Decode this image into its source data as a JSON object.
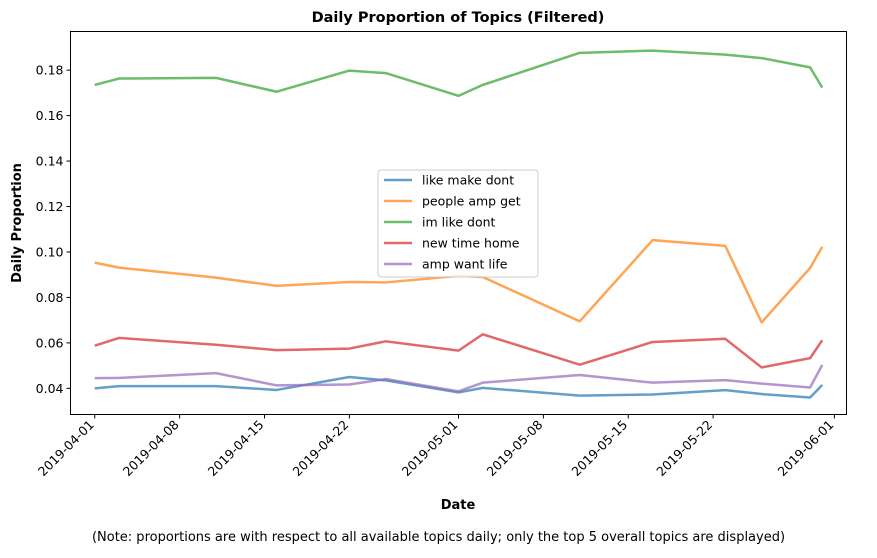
{
  "chart_data": {
    "type": "line",
    "title": "Daily Proportion of Topics (Filtered)",
    "xlabel": "Date",
    "ylabel": "Daily Proportion",
    "x_ticks": [
      "2019-04-01",
      "2019-04-08",
      "2019-04-15",
      "2019-04-22",
      "2019-05-01",
      "2019-05-08",
      "2019-05-15",
      "2019-05-22",
      "2019-06-01"
    ],
    "y_ticks": [
      "0.04",
      "0.06",
      "0.08",
      "0.10",
      "0.12",
      "0.14",
      "0.16",
      "0.18"
    ],
    "xlim": [
      "2019-03-30",
      "2019-06-02"
    ],
    "ylim": [
      0.0285,
      0.197
    ],
    "grid": false,
    "legend_position": "center",
    "x": [
      "2019-04-01",
      "2019-04-03",
      "2019-04-11",
      "2019-04-16",
      "2019-04-22",
      "2019-04-25",
      "2019-05-01",
      "2019-05-03",
      "2019-05-11",
      "2019-05-17",
      "2019-05-23",
      "2019-05-26",
      "2019-05-30",
      "2019-05-31"
    ],
    "series": [
      {
        "name": "like make dont",
        "color": "#1f77b4",
        "values": [
          0.04,
          0.041,
          0.041,
          0.0393,
          0.045,
          0.0435,
          0.0382,
          0.0402,
          0.0368,
          0.0373,
          0.0392,
          0.0375,
          0.036,
          0.0415
        ]
      },
      {
        "name": "people amp get",
        "color": "#ff7f0e",
        "values": [
          0.0953,
          0.0931,
          0.0887,
          0.0851,
          0.0868,
          0.0866,
          0.0895,
          0.089,
          0.0695,
          0.1052,
          0.1027,
          0.069,
          0.093,
          0.1023
        ]
      },
      {
        "name": "im like dont",
        "color": "#2ca02c",
        "values": [
          0.1735,
          0.1763,
          0.1766,
          0.1705,
          0.1798,
          0.1787,
          0.1687,
          0.1735,
          0.1876,
          0.1886,
          0.1868,
          0.1853,
          0.1812,
          0.1723
        ]
      },
      {
        "name": "new time home",
        "color": "#d62728",
        "values": [
          0.0588,
          0.0622,
          0.0592,
          0.0568,
          0.0575,
          0.0607,
          0.0566,
          0.0638,
          0.0504,
          0.0604,
          0.0618,
          0.0492,
          0.0533,
          0.0612
        ]
      },
      {
        "name": "amp want life",
        "color": "#9467bd",
        "values": [
          0.0445,
          0.0446,
          0.0467,
          0.0413,
          0.0417,
          0.0441,
          0.0387,
          0.0425,
          0.0459,
          0.0425,
          0.0436,
          0.0421,
          0.0404,
          0.0503
        ]
      }
    ],
    "note": "(Note: proportions are with respect to all available topics daily; only the top 5 overall topics are displayed)"
  }
}
